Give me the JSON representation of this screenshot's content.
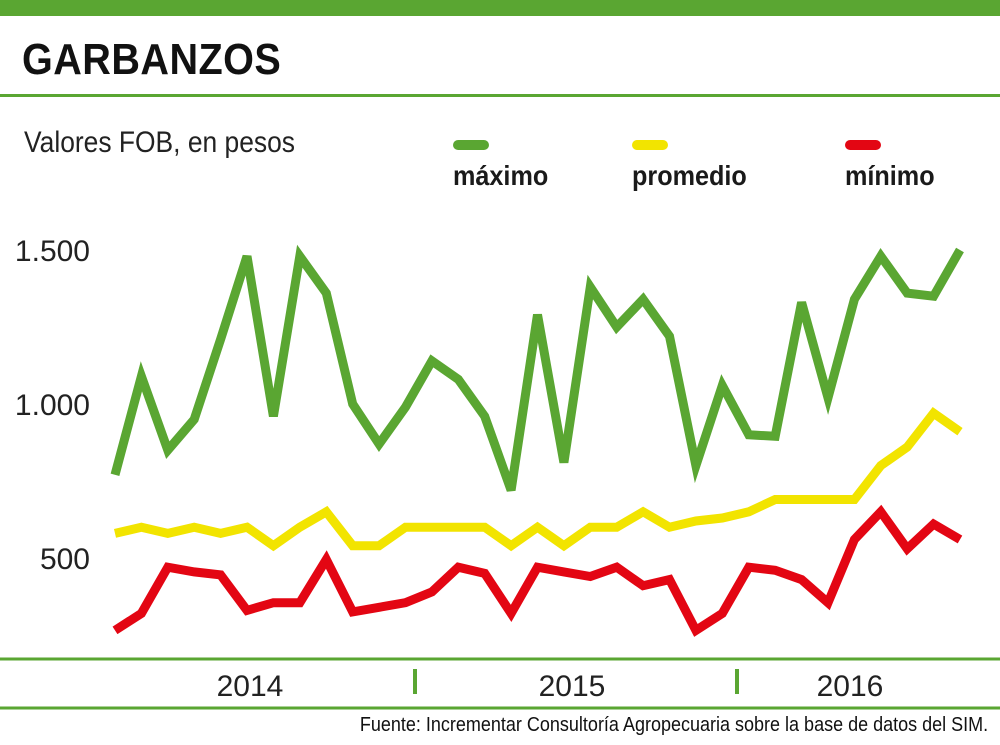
{
  "title": "GARBANZOS",
  "subtitle": "Valores FOB, en pesos",
  "source": "Fuente: Incrementar Consultoría Agropecuaria sobre la base de datos del SIM.",
  "colors": {
    "accent": "#5aa632",
    "maximo": "#5aa632",
    "promedio": "#f2e400",
    "minimo": "#e30613"
  },
  "chart_data": {
    "type": "line",
    "title": "GARBANZOS",
    "subtitle": "Valores FOB, en pesos",
    "ylim": [
      200,
      1550
    ],
    "yticks": [
      {
        "value": 500,
        "label": "500"
      },
      {
        "value": 1000,
        "label": "1.000"
      },
      {
        "value": 1500,
        "label": "1.500"
      }
    ],
    "xticks": [
      "2014",
      "2015",
      "2016"
    ],
    "grid": false,
    "legend_position": "top",
    "series": [
      {
        "name": "máximo",
        "color": "#5aa632",
        "values": [
          770,
          1090,
          850,
          950,
          1210,
          1480,
          960,
          1480,
          1360,
          1000,
          870,
          990,
          1140,
          1080,
          960,
          720,
          1290,
          810,
          1380,
          1250,
          1340,
          1220,
          800,
          1060,
          900,
          895,
          1330,
          1020,
          1340,
          1480,
          1360,
          1350,
          1500
        ]
      },
      {
        "name": "promedio",
        "color": "#f2e400",
        "values": [
          580,
          600,
          580,
          600,
          580,
          600,
          540,
          600,
          650,
          540,
          540,
          600,
          600,
          600,
          600,
          540,
          600,
          540,
          600,
          600,
          650,
          600,
          620,
          630,
          650,
          690,
          690,
          690,
          690,
          800,
          860,
          970,
          910
        ]
      },
      {
        "name": "mínimo",
        "color": "#e30613",
        "values": [
          265,
          320,
          470,
          455,
          445,
          330,
          355,
          355,
          495,
          325,
          340,
          355,
          390,
          470,
          450,
          320,
          470,
          455,
          440,
          470,
          410,
          430,
          265,
          320,
          470,
          460,
          430,
          355,
          560,
          650,
          530,
          610,
          560
        ]
      }
    ]
  }
}
